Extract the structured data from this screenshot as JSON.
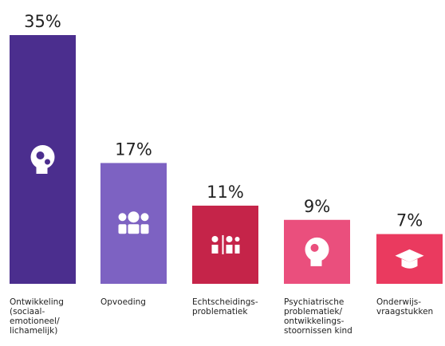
{
  "chart_data": {
    "type": "bar",
    "categories": [
      "Ontwikkeling\n(sociaal-\nemotioneel/\nlichamelijk)",
      "Opvoeding",
      "Echtscheidings-\nproblematiek",
      "Psychiatrische\nproblematiek/\nontwikkelings-\nstoornissen kind",
      "Onderwijs-\nvraagstukken"
    ],
    "values": [
      35,
      17,
      11,
      9,
      7
    ],
    "value_labels": [
      "35%",
      "17%",
      "11%",
      "9%",
      "7%"
    ],
    "colors": [
      "#4b2e8e",
      "#7d62c2",
      "#c52449",
      "#ea4f7d",
      "#ea3a5f"
    ]
  }
}
